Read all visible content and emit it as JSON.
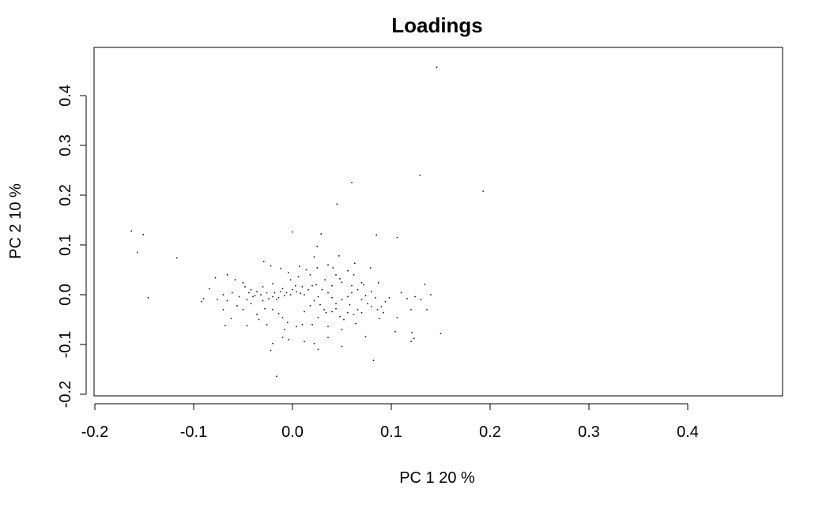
{
  "chart_data": {
    "type": "scatter",
    "title": "Loadings",
    "xlabel": "PC 1 20 %",
    "ylabel": "PC 2 10 %",
    "xlim": [
      -0.2,
      0.49
    ],
    "ylim": [
      -0.2,
      0.46
    ],
    "x_ticks": [
      -0.2,
      -0.1,
      0.0,
      0.1,
      0.2,
      0.3,
      0.4
    ],
    "x_tick_labels": [
      "-0.2",
      "-0.1",
      "0.0",
      "0.1",
      "0.2",
      "0.3",
      "0.4"
    ],
    "y_ticks": [
      -0.2,
      -0.1,
      0.0,
      0.1,
      0.2,
      0.3,
      0.4
    ],
    "y_tick_labels": [
      "-0.2",
      "-0.1",
      "0.0",
      "0.1",
      "0.2",
      "0.3",
      "0.4"
    ],
    "grid": false,
    "point_color": "#000000",
    "points": [
      [
        0.146,
        0.457
      ],
      [
        0.129,
        0.24
      ],
      [
        0.193,
        0.208
      ],
      [
        0.06,
        0.225
      ],
      [
        0.045,
        0.182
      ],
      [
        -0.163,
        0.128
      ],
      [
        -0.151,
        0.121
      ],
      [
        -0.157,
        0.085
      ],
      [
        -0.117,
        0.074
      ],
      [
        -0.146,
        -0.006
      ],
      [
        0.0,
        0.126
      ],
      [
        0.029,
        0.122
      ],
      [
        0.085,
        0.12
      ],
      [
        0.106,
        0.115
      ],
      [
        0.025,
        0.097
      ],
      [
        0.022,
        0.076
      ],
      [
        0.047,
        0.078
      ],
      [
        0.063,
        0.063
      ],
      [
        0.079,
        0.054
      ],
      [
        0.025,
        0.054
      ],
      [
        -0.029,
        0.067
      ],
      [
        -0.012,
        0.053
      ],
      [
        -0.022,
        0.058
      ],
      [
        0.007,
        0.057
      ],
      [
        0.041,
        0.054
      ],
      [
        0.056,
        0.048
      ],
      [
        0.062,
        0.04
      ],
      [
        0.018,
        0.04
      ],
      [
        -0.066,
        0.04
      ],
      [
        -0.058,
        0.03
      ],
      [
        -0.078,
        0.034
      ],
      [
        0.033,
        0.03
      ],
      [
        0.048,
        0.032
      ],
      [
        0.05,
        0.025
      ],
      [
        0.07,
        0.024
      ],
      [
        0.087,
        0.024
      ],
      [
        0.134,
        0.021
      ],
      [
        0.02,
        0.018
      ],
      [
        -0.02,
        0.022
      ],
      [
        0.003,
        0.018
      ],
      [
        -0.03,
        0.016
      ],
      [
        0.01,
        0.016
      ],
      [
        -0.042,
        0.01
      ],
      [
        -0.036,
        0.006
      ],
      [
        -0.032,
        0.0
      ],
      [
        -0.026,
        0.004
      ],
      [
        -0.018,
        0.004
      ],
      [
        -0.012,
        0.006
      ],
      [
        -0.006,
        0.004
      ],
      [
        -0.002,
        0.0
      ],
      [
        0.004,
        0.006
      ],
      [
        0.008,
        0.003
      ],
      [
        0.012,
        0.0
      ],
      [
        -0.02,
        -0.004
      ],
      [
        -0.014,
        -0.006
      ],
      [
        -0.008,
        -0.002
      ],
      [
        -0.016,
        -0.01
      ],
      [
        -0.024,
        -0.008
      ],
      [
        -0.03,
        -0.012
      ],
      [
        -0.04,
        -0.004
      ],
      [
        -0.046,
        -0.01
      ],
      [
        -0.054,
        -0.004
      ],
      [
        -0.061,
        0.004
      ],
      [
        -0.07,
        0.0
      ],
      [
        -0.066,
        -0.012
      ],
      [
        -0.076,
        -0.01
      ],
      [
        -0.084,
        0.012
      ],
      [
        -0.09,
        -0.008
      ],
      [
        -0.092,
        -0.014
      ],
      [
        -0.07,
        -0.03
      ],
      [
        -0.056,
        -0.022
      ],
      [
        -0.05,
        -0.03
      ],
      [
        -0.042,
        -0.018
      ],
      [
        -0.036,
        -0.04
      ],
      [
        -0.028,
        -0.028
      ],
      [
        -0.02,
        -0.03
      ],
      [
        -0.014,
        -0.038
      ],
      [
        -0.01,
        -0.046
      ],
      [
        -0.005,
        -0.056
      ],
      [
        0.004,
        -0.064
      ],
      [
        -0.008,
        -0.07
      ],
      [
        0.012,
        -0.034
      ],
      [
        0.018,
        -0.022
      ],
      [
        0.022,
        -0.012
      ],
      [
        0.026,
        -0.004
      ],
      [
        0.03,
        0.01
      ],
      [
        0.036,
        0.004
      ],
      [
        0.04,
        -0.006
      ],
      [
        0.044,
        -0.018
      ],
      [
        0.05,
        -0.01
      ],
      [
        0.056,
        -0.004
      ],
      [
        0.06,
        0.004
      ],
      [
        0.066,
        0.01
      ],
      [
        0.07,
        -0.01
      ],
      [
        0.076,
        -0.018
      ],
      [
        0.08,
        -0.024
      ],
      [
        0.086,
        -0.03
      ],
      [
        0.09,
        -0.024
      ],
      [
        0.094,
        -0.014
      ],
      [
        0.098,
        -0.006
      ],
      [
        0.11,
        0.004
      ],
      [
        0.116,
        -0.008
      ],
      [
        0.124,
        -0.004
      ],
      [
        0.13,
        -0.01
      ],
      [
        0.14,
        0.0
      ],
      [
        0.136,
        -0.03
      ],
      [
        0.12,
        -0.03
      ],
      [
        0.092,
        -0.036
      ],
      [
        0.07,
        -0.036
      ],
      [
        0.056,
        -0.036
      ],
      [
        0.048,
        -0.044
      ],
      [
        0.04,
        -0.034
      ],
      [
        0.032,
        -0.03
      ],
      [
        0.026,
        -0.046
      ],
      [
        0.02,
        -0.06
      ],
      [
        0.01,
        -0.06
      ],
      [
        0.036,
        -0.064
      ],
      [
        0.05,
        -0.07
      ],
      [
        0.064,
        -0.058
      ],
      [
        0.088,
        -0.048
      ],
      [
        0.106,
        -0.046
      ],
      [
        0.104,
        -0.074
      ],
      [
        0.121,
        -0.076
      ],
      [
        0.12,
        -0.094
      ],
      [
        0.123,
        -0.088
      ],
      [
        0.15,
        -0.078
      ],
      [
        0.074,
        -0.084
      ],
      [
        0.036,
        -0.086
      ],
      [
        0.022,
        -0.098
      ],
      [
        0.026,
        -0.11
      ],
      [
        0.012,
        -0.094
      ],
      [
        -0.004,
        -0.09
      ],
      [
        -0.01,
        -0.086
      ],
      [
        -0.02,
        -0.098
      ],
      [
        -0.022,
        -0.112
      ],
      [
        0.082,
        -0.132
      ],
      [
        0.05,
        -0.104
      ],
      [
        -0.016,
        -0.164
      ],
      [
        -0.068,
        -0.062
      ],
      [
        -0.062,
        -0.048
      ],
      [
        -0.046,
        -0.062
      ],
      [
        -0.034,
        -0.05
      ],
      [
        -0.026,
        -0.06
      ],
      [
        -0.002,
        0.03
      ],
      [
        0.006,
        0.036
      ],
      [
        -0.004,
        0.044
      ],
      [
        0.014,
        0.05
      ],
      [
        0.036,
        0.06
      ],
      [
        0.04,
        0.018
      ],
      [
        0.06,
        0.018
      ],
      [
        0.072,
        0.02
      ],
      [
        0.08,
        0.006
      ],
      [
        0.044,
        0.04
      ],
      [
        -0.05,
        0.024
      ],
      [
        -0.048,
        0.016
      ],
      [
        -0.044,
        0.004
      ],
      [
        -0.038,
        -0.002
      ],
      [
        -0.01,
        0.012
      ],
      [
        0.0,
        0.01
      ],
      [
        0.016,
        0.01
      ],
      [
        0.024,
        0.02
      ],
      [
        0.028,
        -0.02
      ],
      [
        0.034,
        -0.036
      ],
      [
        0.044,
        -0.028
      ],
      [
        0.052,
        -0.05
      ],
      [
        0.058,
        -0.02
      ],
      [
        0.062,
        -0.04
      ],
      [
        0.066,
        -0.03
      ],
      [
        0.074,
        -0.002
      ],
      [
        0.084,
        -0.006
      ]
    ]
  }
}
